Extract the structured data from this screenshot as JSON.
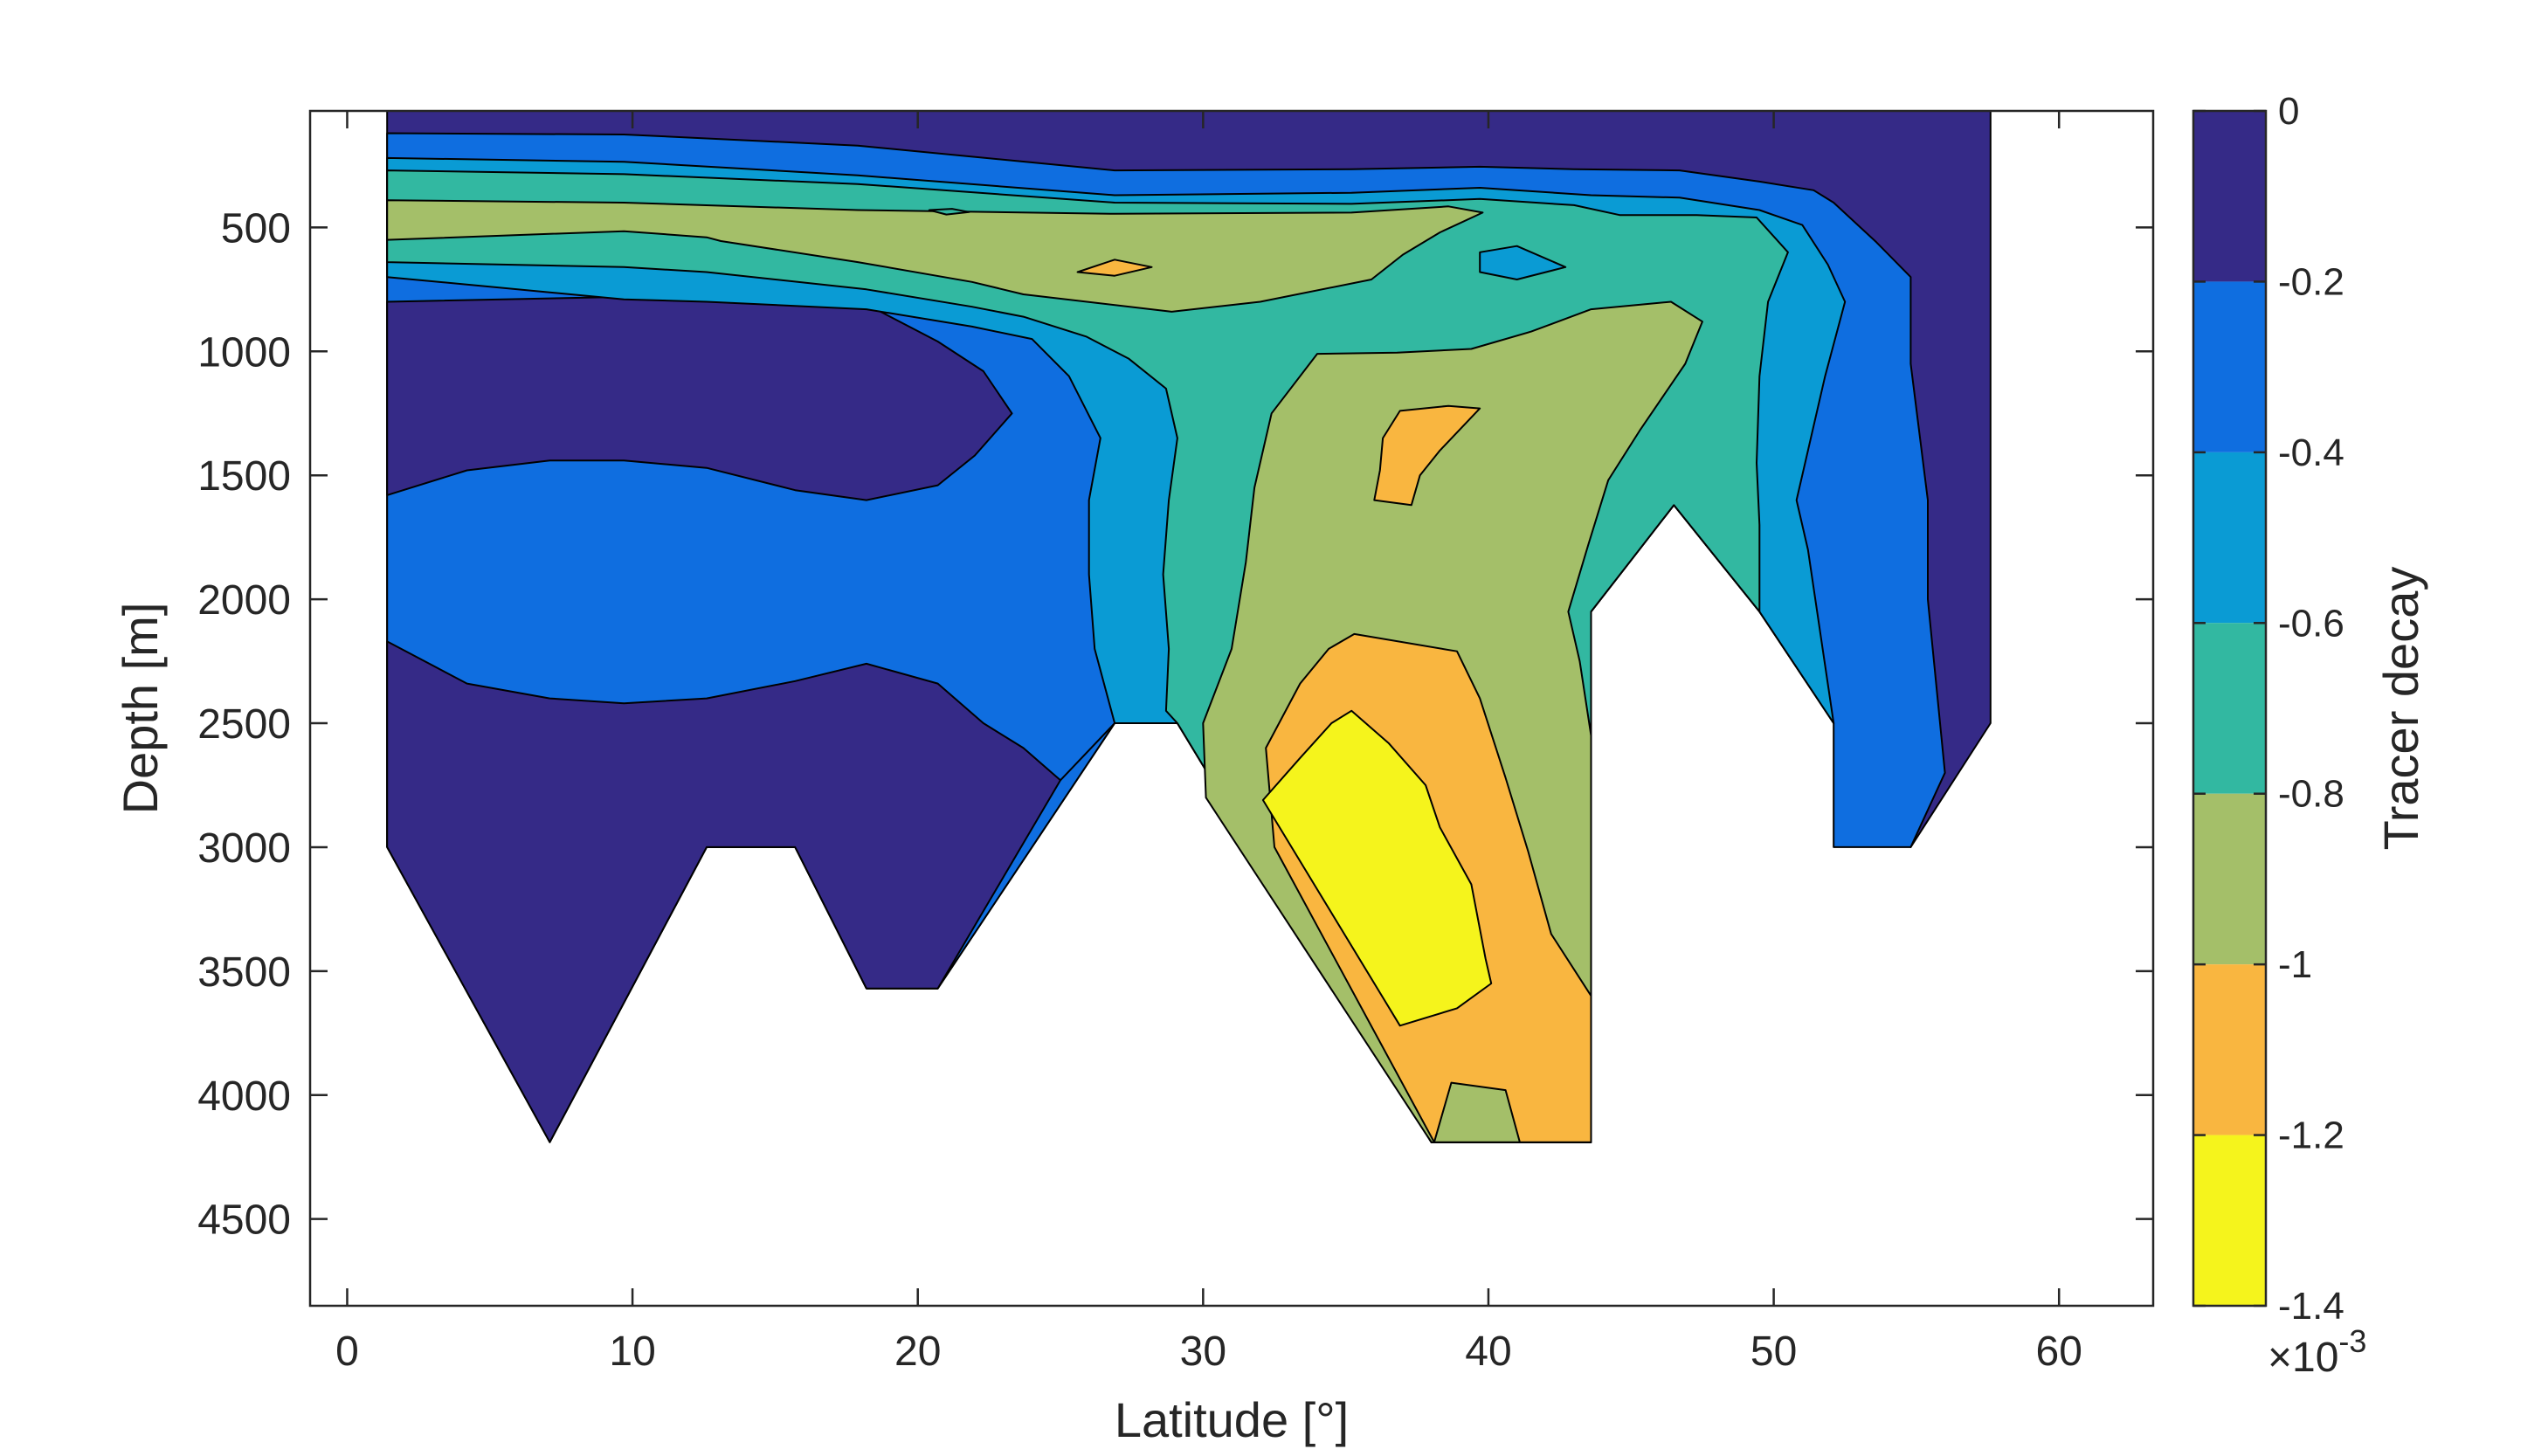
{
  "chart_data": {
    "type": "contourf",
    "title": "",
    "xlabel": "Latitude [°]",
    "ylabel": "Depth [m]",
    "xlim": [
      -1.3,
      63.3
    ],
    "ylim": [
      4850,
      30
    ],
    "y_reversed": true,
    "xticks": [
      0,
      10,
      20,
      30,
      40,
      50,
      60
    ],
    "yticks": [
      500,
      1000,
      1500,
      2000,
      2500,
      3000,
      3500,
      4000,
      4500
    ],
    "grid": false,
    "colorbar": {
      "label": "Tracer decay",
      "levels": [
        0,
        -0.2,
        -0.4,
        -0.6,
        -0.8,
        -1,
        -1.2,
        -1.4
      ],
      "tick_labels": [
        "0",
        "-0.2",
        "-0.4",
        "-0.6",
        "-0.8",
        "-1",
        "-1.2",
        "-1.4"
      ],
      "exponent_label": "×10",
      "exponent": "-3",
      "colors": [
        "#352a87",
        "#0f6ee0",
        "#0a9bd4",
        "#32b8a1",
        "#a4bf69",
        "#f9b640",
        "#f5f41c"
      ]
    },
    "regions": [
      {
        "level": 0,
        "pts": [
          [
            1.4,
            30
          ],
          [
            57.6,
            30
          ],
          [
            57.6,
            2500
          ],
          [
            54.8,
            3000
          ],
          [
            52.1,
            2500
          ],
          [
            49.5,
            2050
          ],
          [
            46.5,
            1620
          ],
          [
            43.6,
            2050
          ],
          [
            43.6,
            4190
          ],
          [
            38,
            4190
          ],
          [
            29.1,
            2500
          ],
          [
            26.9,
            2500
          ],
          [
            20.7,
            3570
          ],
          [
            18.2,
            3570
          ],
          [
            15.7,
            3000
          ],
          [
            12.6,
            3000
          ],
          [
            7.1,
            4190
          ],
          [
            1.4,
            3000
          ]
        ]
      },
      {
        "level": 1,
        "pts": [
          [
            1.4,
            120
          ],
          [
            9.7,
            125
          ],
          [
            17.9,
            170
          ],
          [
            26.9,
            270
          ],
          [
            35.2,
            265
          ],
          [
            39.7,
            255
          ],
          [
            43,
            265
          ],
          [
            46.7,
            270
          ],
          [
            49.5,
            315
          ],
          [
            51.4,
            350
          ],
          [
            52.1,
            400
          ],
          [
            53.6,
            560
          ],
          [
            54.8,
            700
          ],
          [
            54.8,
            1050
          ],
          [
            55.4,
            1600
          ],
          [
            55.4,
            2000
          ],
          [
            56,
            2700
          ],
          [
            54.8,
            3000
          ],
          [
            52.1,
            3000
          ],
          [
            52.1,
            2500
          ],
          [
            49.5,
            2050
          ],
          [
            46.5,
            1620
          ],
          [
            43.6,
            2050
          ],
          [
            43.6,
            4190
          ],
          [
            38,
            4190
          ],
          [
            29.1,
            2500
          ],
          [
            26.9,
            2500
          ],
          [
            20.7,
            3570
          ],
          [
            18.2,
            3570
          ],
          [
            15.7,
            3000
          ],
          [
            12.6,
            3000
          ],
          [
            7.1,
            4190
          ],
          [
            1.4,
            3000
          ]
        ]
      },
      {
        "level": 0,
        "pts": [
          [
            1.4,
            2170
          ],
          [
            4.2,
            2340
          ],
          [
            7.1,
            2400
          ],
          [
            9.7,
            2420
          ],
          [
            12.6,
            2400
          ],
          [
            15.7,
            2330
          ],
          [
            18.2,
            2260
          ],
          [
            20.7,
            2340
          ],
          [
            22.3,
            2500
          ],
          [
            23.7,
            2600
          ],
          [
            25,
            2730
          ],
          [
            20.7,
            3570
          ],
          [
            18.2,
            3570
          ],
          [
            15.7,
            3000
          ],
          [
            12.6,
            3000
          ],
          [
            7.1,
            4190
          ],
          [
            1.4,
            3000
          ]
        ]
      },
      {
        "level": 0,
        "pts": [
          [
            1.4,
            800
          ],
          [
            9.7,
            780
          ],
          [
            18.2,
            810
          ],
          [
            20.7,
            960
          ],
          [
            22.3,
            1080
          ],
          [
            23.3,
            1250
          ],
          [
            22,
            1420
          ],
          [
            20.7,
            1540
          ],
          [
            18.2,
            1600
          ],
          [
            15.7,
            1560
          ],
          [
            12.6,
            1470
          ],
          [
            9.7,
            1440
          ],
          [
            7.1,
            1440
          ],
          [
            4.2,
            1480
          ],
          [
            1.4,
            1580
          ]
        ]
      },
      {
        "level": 2,
        "pts": [
          [
            1.4,
            220
          ],
          [
            9.7,
            235
          ],
          [
            17.9,
            290
          ],
          [
            26.9,
            370
          ],
          [
            35.2,
            360
          ],
          [
            39.7,
            340
          ],
          [
            43.6,
            370
          ],
          [
            46.7,
            380
          ],
          [
            49.5,
            430
          ],
          [
            51,
            490
          ],
          [
            51.9,
            650
          ],
          [
            52.5,
            800
          ],
          [
            51.8,
            1100
          ],
          [
            51.2,
            1400
          ],
          [
            50.8,
            1600
          ],
          [
            51.2,
            1800
          ],
          [
            52.1,
            2500
          ],
          [
            49.5,
            2050
          ],
          [
            46.5,
            1620
          ],
          [
            43.6,
            2050
          ],
          [
            43.6,
            4190
          ],
          [
            38,
            4190
          ],
          [
            29.1,
            2500
          ],
          [
            26.9,
            2500
          ],
          [
            25,
            2730
          ],
          [
            26.9,
            2500
          ],
          [
            26.2,
            2200
          ],
          [
            26,
            1900
          ],
          [
            26,
            1600
          ],
          [
            26.4,
            1350
          ],
          [
            25.3,
            1100
          ],
          [
            24,
            950
          ],
          [
            21.9,
            900
          ],
          [
            18.2,
            830
          ],
          [
            12.6,
            800
          ],
          [
            9.7,
            790
          ],
          [
            1.4,
            700
          ]
        ]
      },
      {
        "level": 3,
        "pts": [
          [
            1.4,
            270
          ],
          [
            9.7,
            285
          ],
          [
            17.9,
            325
          ],
          [
            26.9,
            400
          ],
          [
            35.2,
            405
          ],
          [
            39.7,
            385
          ],
          [
            43,
            410
          ],
          [
            44.6,
            450
          ],
          [
            47.3,
            450
          ],
          [
            49.4,
            460
          ],
          [
            50.5,
            600
          ],
          [
            49.8,
            800
          ],
          [
            49.5,
            1100
          ],
          [
            49.4,
            1450
          ],
          [
            49.5,
            1700
          ],
          [
            49.5,
            2050
          ],
          [
            46.5,
            1620
          ],
          [
            43.6,
            2050
          ],
          [
            43.6,
            4190
          ],
          [
            38,
            4190
          ],
          [
            29.1,
            2500
          ],
          [
            28.7,
            2450
          ],
          [
            28.8,
            2200
          ],
          [
            28.6,
            1900
          ],
          [
            28.8,
            1600
          ],
          [
            29.1,
            1350
          ],
          [
            28.7,
            1150
          ],
          [
            27.4,
            1030
          ],
          [
            25.9,
            940
          ],
          [
            23.7,
            860
          ],
          [
            21.9,
            820
          ],
          [
            18.2,
            750
          ],
          [
            12.6,
            680
          ],
          [
            9.7,
            660
          ],
          [
            1.4,
            640
          ]
        ]
      },
      {
        "level": 2,
        "pts": [
          [
            39.7,
            600
          ],
          [
            41,
            575
          ],
          [
            42.7,
            660
          ],
          [
            41,
            710
          ],
          [
            39.7,
            680
          ]
        ]
      },
      {
        "level": 4,
        "pts": [
          [
            1.4,
            390
          ],
          [
            9.7,
            400
          ],
          [
            17.9,
            430
          ],
          [
            26.9,
            445
          ],
          [
            35.2,
            440
          ],
          [
            38.6,
            415
          ],
          [
            39.8,
            440
          ],
          [
            38.3,
            520
          ],
          [
            37,
            610
          ],
          [
            35.9,
            710
          ],
          [
            32,
            800
          ],
          [
            28.9,
            840
          ],
          [
            23.7,
            770
          ],
          [
            21.9,
            720
          ],
          [
            17.9,
            640
          ],
          [
            13.1,
            555
          ],
          [
            12.6,
            540
          ],
          [
            9.7,
            515
          ],
          [
            1.4,
            550
          ]
        ]
      },
      {
        "level": 4,
        "pts": [
          [
            34,
            1010
          ],
          [
            36.8,
            1005
          ],
          [
            39.4,
            990
          ],
          [
            41.5,
            920
          ],
          [
            43.6,
            830
          ],
          [
            46.4,
            800
          ],
          [
            47.5,
            880
          ],
          [
            46.9,
            1050
          ],
          [
            45.3,
            1320
          ],
          [
            44.2,
            1520
          ],
          [
            43.5,
            1780
          ],
          [
            42.8,
            2050
          ],
          [
            43.2,
            2250
          ],
          [
            43.6,
            2550
          ],
          [
            43.6,
            4190
          ],
          [
            38,
            4190
          ],
          [
            30.1,
            2800
          ],
          [
            30,
            2500
          ],
          [
            31,
            2200
          ],
          [
            31.5,
            1850
          ],
          [
            31.8,
            1550
          ],
          [
            32.4,
            1250
          ]
        ]
      },
      {
        "level": 5,
        "pts": [
          [
            35.3,
            2140
          ],
          [
            38.9,
            2210
          ],
          [
            39.7,
            2400
          ],
          [
            40.6,
            2720
          ],
          [
            41.4,
            3020
          ],
          [
            42.2,
            3350
          ],
          [
            43.6,
            3600
          ],
          [
            43.6,
            4190
          ],
          [
            41.1,
            4190
          ],
          [
            40.6,
            3980
          ],
          [
            38.7,
            3950
          ],
          [
            38.1,
            4190
          ],
          [
            32.5,
            3000
          ],
          [
            32.2,
            2600
          ],
          [
            33.4,
            2340
          ],
          [
            34.4,
            2200
          ]
        ]
      },
      {
        "level": 6,
        "pts": [
          [
            35.2,
            2450
          ],
          [
            36.5,
            2580
          ],
          [
            37.8,
            2750
          ],
          [
            38.3,
            2920
          ],
          [
            39.4,
            3150
          ],
          [
            39.9,
            3450
          ],
          [
            40.1,
            3550
          ],
          [
            38.9,
            3650
          ],
          [
            36.9,
            3720
          ],
          [
            33.1,
            3000
          ],
          [
            32.1,
            2810
          ],
          [
            33.4,
            2640
          ],
          [
            34.5,
            2500
          ]
        ]
      },
      {
        "level": 5,
        "pts": [
          [
            36.3,
            1350
          ],
          [
            36.9,
            1240
          ],
          [
            38.6,
            1220
          ],
          [
            39.7,
            1230
          ],
          [
            38.3,
            1400
          ],
          [
            37.6,
            1500
          ],
          [
            37.3,
            1620
          ],
          [
            36,
            1600
          ],
          [
            36.2,
            1480
          ]
        ]
      },
      {
        "level": 5,
        "pts": [
          [
            25.6,
            680
          ],
          [
            26.9,
            630
          ],
          [
            28.2,
            660
          ],
          [
            26.9,
            695
          ]
        ]
      },
      {
        "level": 3,
        "pts": [
          [
            20.4,
            430
          ],
          [
            21.2,
            425
          ],
          [
            21.8,
            438
          ],
          [
            21,
            448
          ]
        ]
      }
    ]
  }
}
